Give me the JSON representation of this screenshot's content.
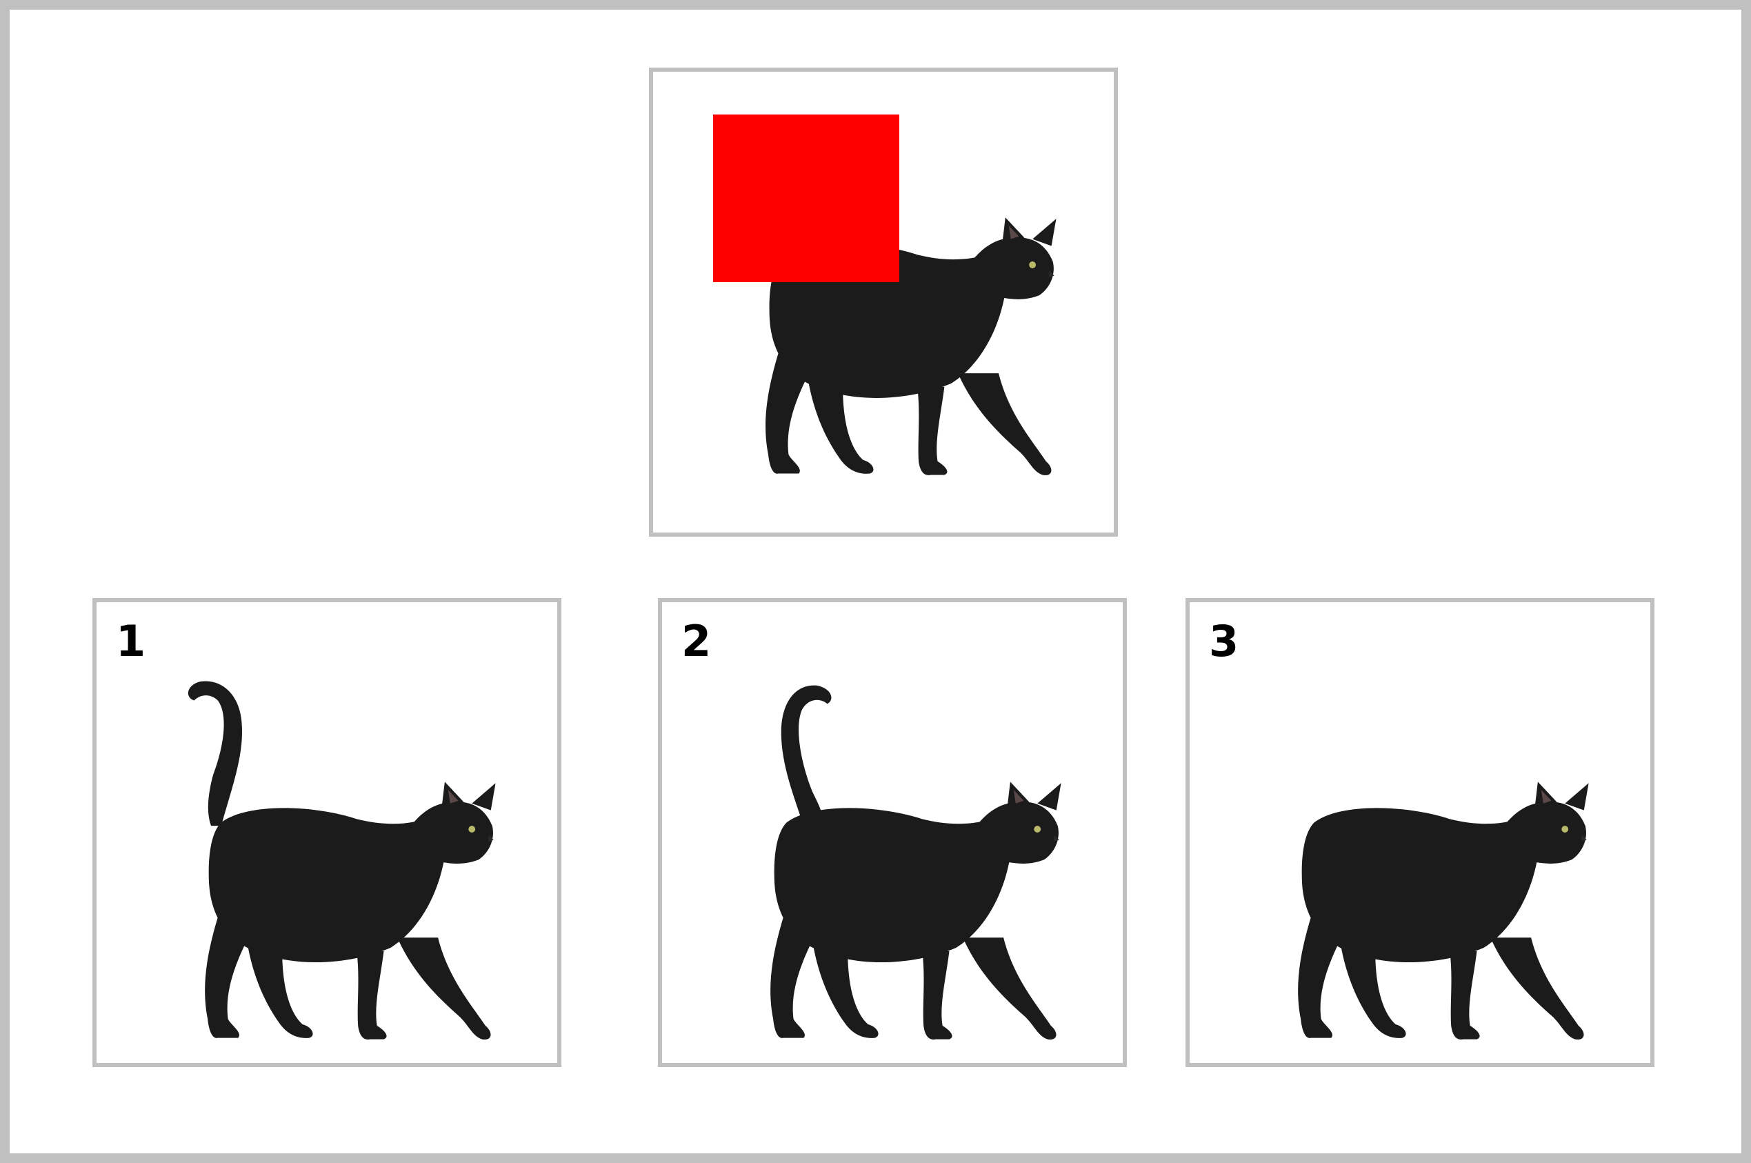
{
  "colors": {
    "frame_border": "#c0c0c0",
    "panel_border": "#c0c0c0",
    "occluder": "#ff0000",
    "cat_fur": "#1b1b1b",
    "cat_eye": "#b9b96a",
    "ear_inner": "#5a4848"
  },
  "query": {
    "occluded": true,
    "cat_pose": "walking-right"
  },
  "options": [
    {
      "number": "1",
      "tail": "raised-curled-left"
    },
    {
      "number": "2",
      "tail": "raised-curled-right"
    },
    {
      "number": "3",
      "tail": "none"
    }
  ]
}
